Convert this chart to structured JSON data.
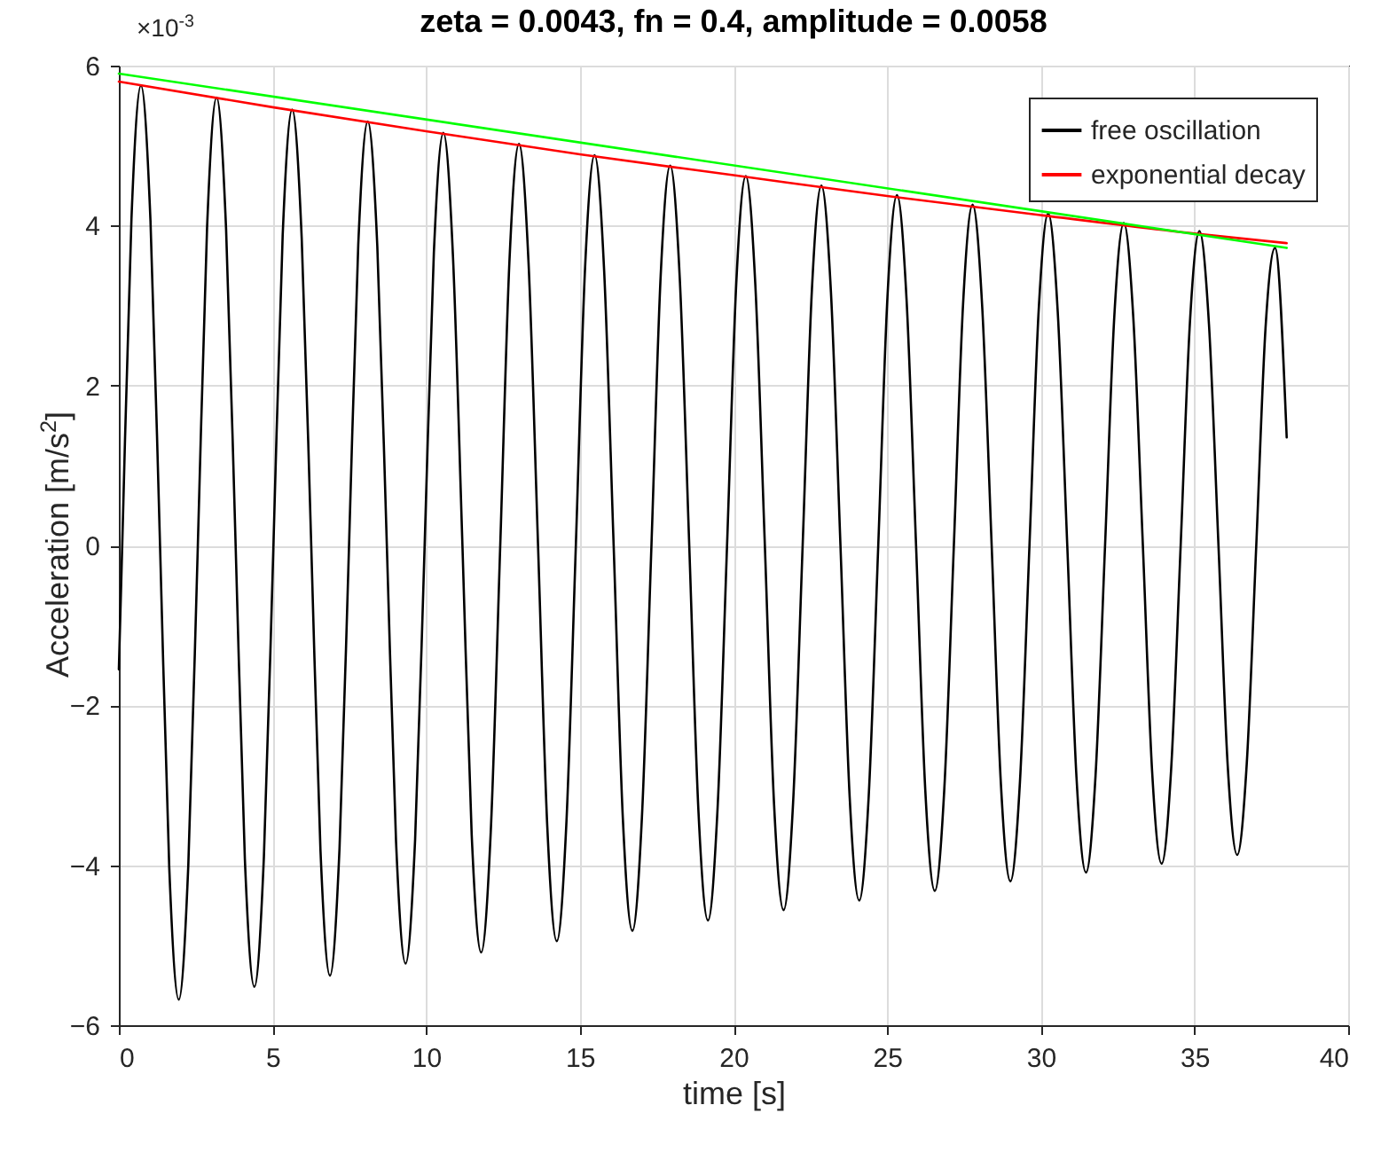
{
  "chart_data": {
    "type": "line",
    "title": "zeta = 0.0043, fn = 0.4, amplitude = 0.0058",
    "xlabel": "time [s]",
    "ylabel": "Acceleration [m/s$^{2}$]",
    "annotations": [
      "×10$^{-3}$"
    ],
    "xlim": [
      0,
      40
    ],
    "xticks": [
      0,
      5,
      10,
      15,
      20,
      25,
      30,
      35,
      40
    ],
    "ylim": [
      -6,
      6
    ],
    "yticks": [
      -6,
      -4,
      -2,
      0,
      2,
      4,
      6
    ],
    "grid": true,
    "legend": "top right",
    "line_style": "solid",
    "series": [
      {
        "name": "free oscillation",
        "color": "#000000",
        "x": [
          0,
          0.11,
          0.41,
          0.72,
          1.03,
          1.34,
          1.64,
          1.95,
          2.26,
          2.57,
          2.87,
          3.18,
          3.49,
          3.8,
          4.1,
          4.41,
          4.72,
          5.03,
          5.33,
          5.64,
          5.95,
          6.26,
          6.56,
          6.87,
          7.18,
          7.49,
          7.79,
          8.1,
          8.41,
          8.72,
          9.02,
          9.33,
          9.64,
          9.95,
          10.25,
          10.56,
          10.87,
          11.18,
          11.48,
          11.79,
          12.1,
          12.41,
          12.71,
          13.02,
          13.33,
          13.64,
          13.94,
          14.25,
          14.56,
          14.87,
          15.17,
          15.48,
          15.79,
          16.1,
          16.4,
          16.71,
          17.02,
          17.33,
          17.63,
          17.94,
          18.25,
          18.56,
          18.86,
          19.17,
          19.48,
          19.79,
          20.09,
          20.4,
          20.71,
          21.02,
          21.32,
          21.63,
          21.94,
          22.25,
          22.55,
          22.86,
          23.17,
          23.48,
          23.78,
          24.09,
          24.4,
          24.71,
          25.01,
          25.32,
          25.63,
          25.94,
          26.24,
          26.55,
          26.86,
          27.17,
          27.47,
          27.78,
          28.09,
          28.4,
          28.7,
          29.01,
          29.32,
          29.63,
          29.93,
          30.24,
          30.55,
          30.86,
          31.16,
          31.47,
          31.78,
          32.09,
          32.39,
          32.7,
          33.01,
          33.32,
          33.62,
          33.93,
          34.24,
          34.55,
          34.85,
          35.16,
          35.47,
          35.78,
          36.08,
          36.39,
          36.7,
          37.01,
          37.31,
          37.62,
          38
        ],
        "values": [
          -1.55,
          0,
          4.08,
          5.75,
          4.05,
          0,
          -4.03,
          -5.68,
          -4.0,
          0,
          3.97,
          5.6,
          3.95,
          0,
          -3.92,
          -5.52,
          -3.89,
          0,
          3.87,
          5.45,
          3.84,
          0,
          -3.81,
          -5.38,
          -3.79,
          0,
          3.76,
          5.3,
          3.74,
          0,
          -3.71,
          -5.23,
          -3.68,
          0,
          3.66,
          5.16,
          3.63,
          0,
          -3.61,
          -5.09,
          -3.59,
          0,
          3.56,
          5.02,
          3.54,
          0,
          -3.51,
          -4.95,
          -3.49,
          0,
          3.47,
          4.88,
          3.44,
          0,
          -3.42,
          -4.82,
          -3.4,
          0,
          3.37,
          4.75,
          3.35,
          0,
          -3.33,
          -4.69,
          -3.3,
          0,
          3.28,
          4.62,
          3.26,
          0,
          -3.24,
          -4.56,
          -3.21,
          0,
          3.19,
          4.5,
          3.17,
          0,
          -3.15,
          -4.44,
          -3.13,
          0,
          3.11,
          4.38,
          3.08,
          0,
          -3.06,
          -4.32,
          -3.04,
          0,
          3.02,
          4.26,
          3.0,
          0,
          -2.98,
          -4.2,
          -2.96,
          0,
          2.94,
          4.15,
          2.92,
          0,
          -2.9,
          -4.09,
          -2.88,
          0,
          2.86,
          4.03,
          2.84,
          0,
          -2.82,
          -3.98,
          -2.8,
          0,
          2.78,
          3.93,
          2.77,
          0,
          -2.75,
          -3.87,
          -2.73,
          0,
          2.71,
          3.72,
          1.35
        ]
      },
      {
        "name": "exponential decay",
        "color": "#ff0000",
        "x": [
          0,
          5,
          10,
          15,
          20,
          25,
          30,
          35,
          38
        ],
        "values": [
          5.8,
          5.48,
          5.18,
          4.89,
          4.63,
          4.37,
          4.13,
          3.9,
          3.78
        ]
      },
      {
        "color": "#00ff00",
        "x": [
          0,
          38
        ],
        "values": [
          5.9,
          3.72
        ]
      }
    ]
  }
}
